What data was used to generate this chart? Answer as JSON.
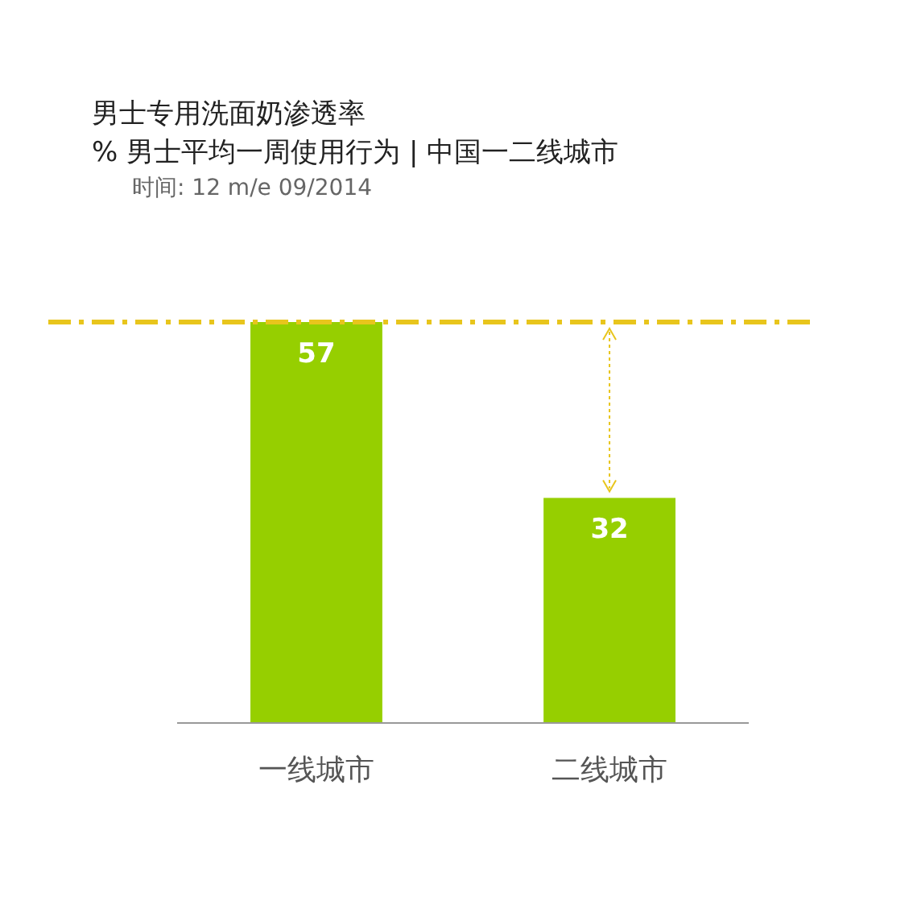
{
  "chart_data": {
    "type": "bar",
    "title": "男士专用洗面奶渗透率",
    "subtitle": "% 男士平均一周使用行为 | 中国一二线城市",
    "annotations": [
      "时间: 12 m/e 09/2014"
    ],
    "categories": [
      "一线城市",
      "二线城市"
    ],
    "values": [
      57,
      32
    ],
    "color": "#96cf00",
    "data_labels": true,
    "ref_lines": [
      {
        "axis": "y",
        "value": 57,
        "color": "#e8c51c",
        "line_style": "dashed"
      }
    ]
  }
}
